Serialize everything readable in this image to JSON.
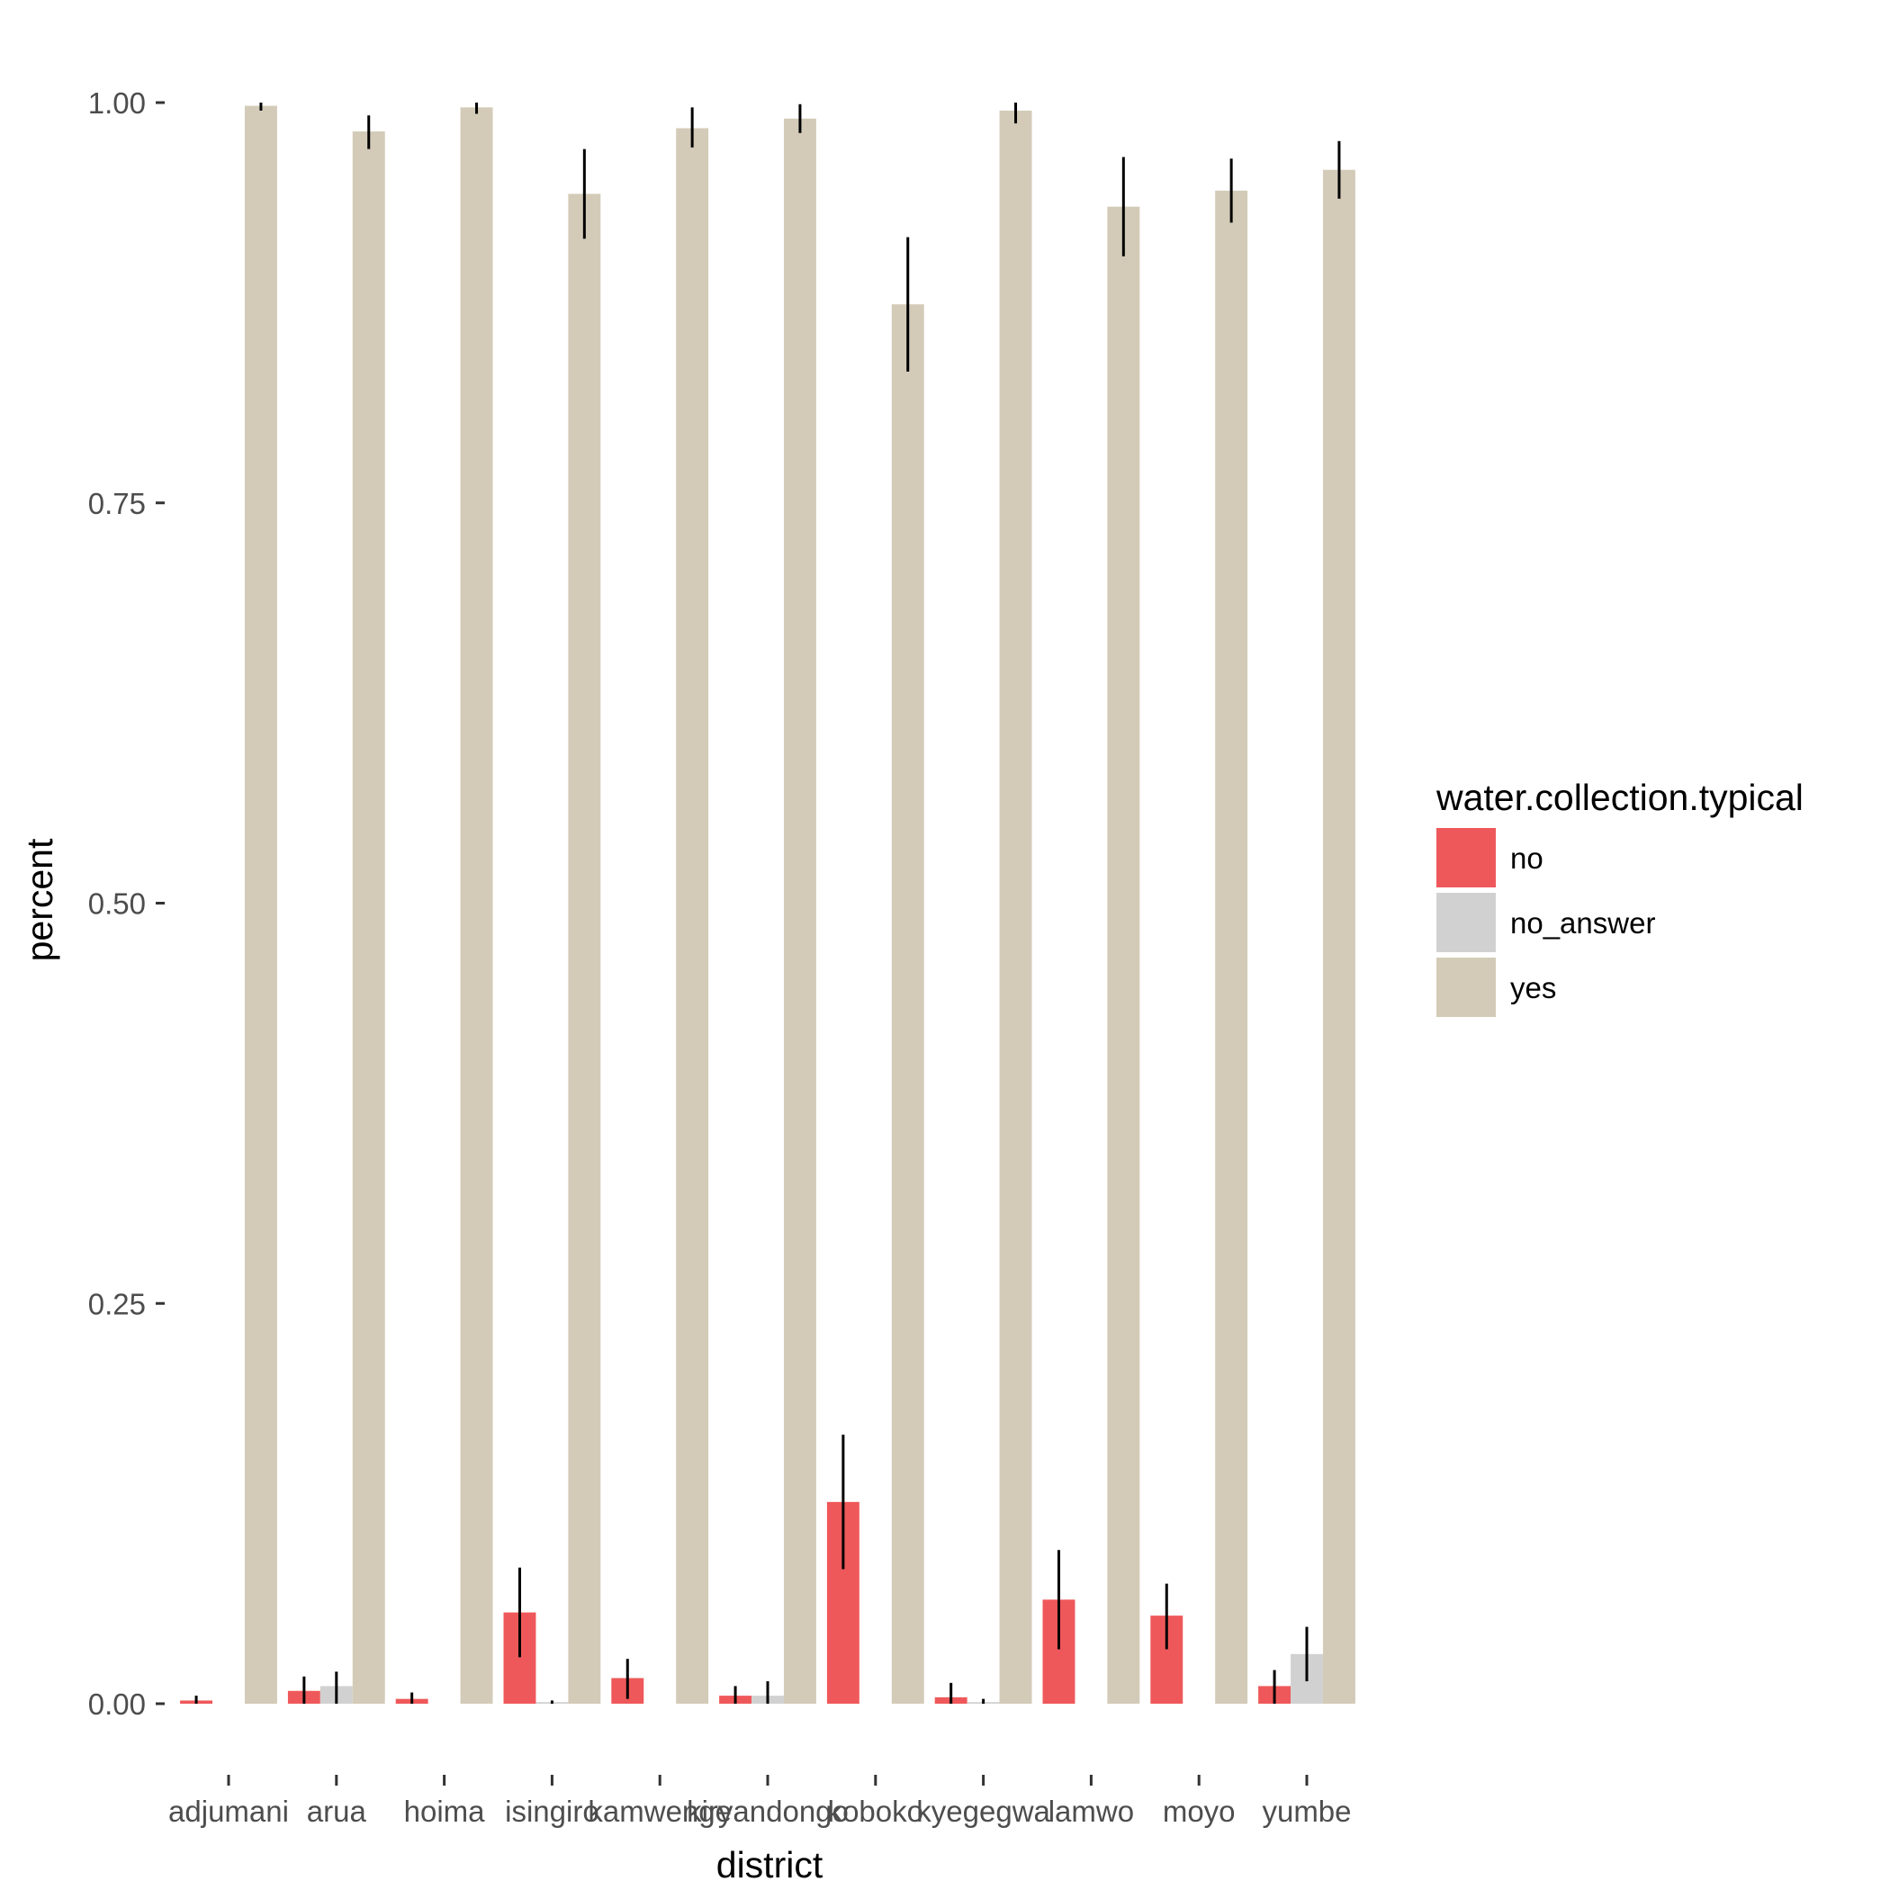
{
  "chart_data": {
    "type": "bar",
    "xlabel": "district",
    "ylabel": "percent",
    "ylim": [
      -0.05,
      1.03
    ],
    "yticks": [
      0,
      0.25,
      0.5,
      0.75,
      1
    ],
    "ytick_labels": [
      "0.00",
      "0.25",
      "0.50",
      "0.75",
      "1.00"
    ],
    "grid": false,
    "legend_position": "right",
    "legend_title": "water.collection.typical",
    "categories": [
      "adjumani",
      "arua",
      "hoima",
      "isingiro",
      "kamwenge",
      "kiryandongo",
      "koboko",
      "kyegegwa",
      "lamwo",
      "moyo",
      "yumbe"
    ],
    "series": [
      {
        "name": "no",
        "color": "#ef585a",
        "values": [
          0.002,
          0.008,
          0.003,
          0.057,
          0.016,
          0.005,
          0.126,
          0.004,
          0.065,
          0.055,
          0.011
        ],
        "err_low": [
          0.0,
          0.0,
          0.0,
          0.029,
          0.003,
          0.0,
          0.084,
          0.0,
          0.034,
          0.034,
          0.0
        ],
        "err_high": [
          0.005,
          0.017,
          0.007,
          0.085,
          0.028,
          0.011,
          0.168,
          0.013,
          0.096,
          0.075,
          0.021
        ]
      },
      {
        "name": "no_answer",
        "color": "#d1d1d1",
        "values": [
          0.0,
          0.011,
          0.0,
          0.001,
          0.0,
          0.005,
          0.0,
          0.001,
          0.0,
          0.0,
          0.031
        ],
        "err_low": [
          0.0,
          0.0,
          0.0,
          0.0,
          0.0,
          0.0,
          0.0,
          0.0,
          0.0,
          0.0,
          0.014
        ],
        "err_high": [
          0.0,
          0.02,
          0.0,
          0.002,
          0.0,
          0.014,
          0.0,
          0.003,
          0.0,
          0.0,
          0.048
        ]
      },
      {
        "name": "yes",
        "color": "#d3cbb8",
        "values": [
          0.998,
          0.982,
          0.997,
          0.943,
          0.984,
          0.99,
          0.874,
          0.995,
          0.935,
          0.945,
          0.958
        ],
        "err_low": [
          0.995,
          0.971,
          0.993,
          0.915,
          0.972,
          0.981,
          0.832,
          0.987,
          0.904,
          0.925,
          0.94
        ],
        "err_high": [
          1.0,
          0.992,
          1.0,
          0.971,
          0.997,
          0.999,
          0.916,
          1.0,
          0.966,
          0.965,
          0.976
        ]
      }
    ]
  }
}
